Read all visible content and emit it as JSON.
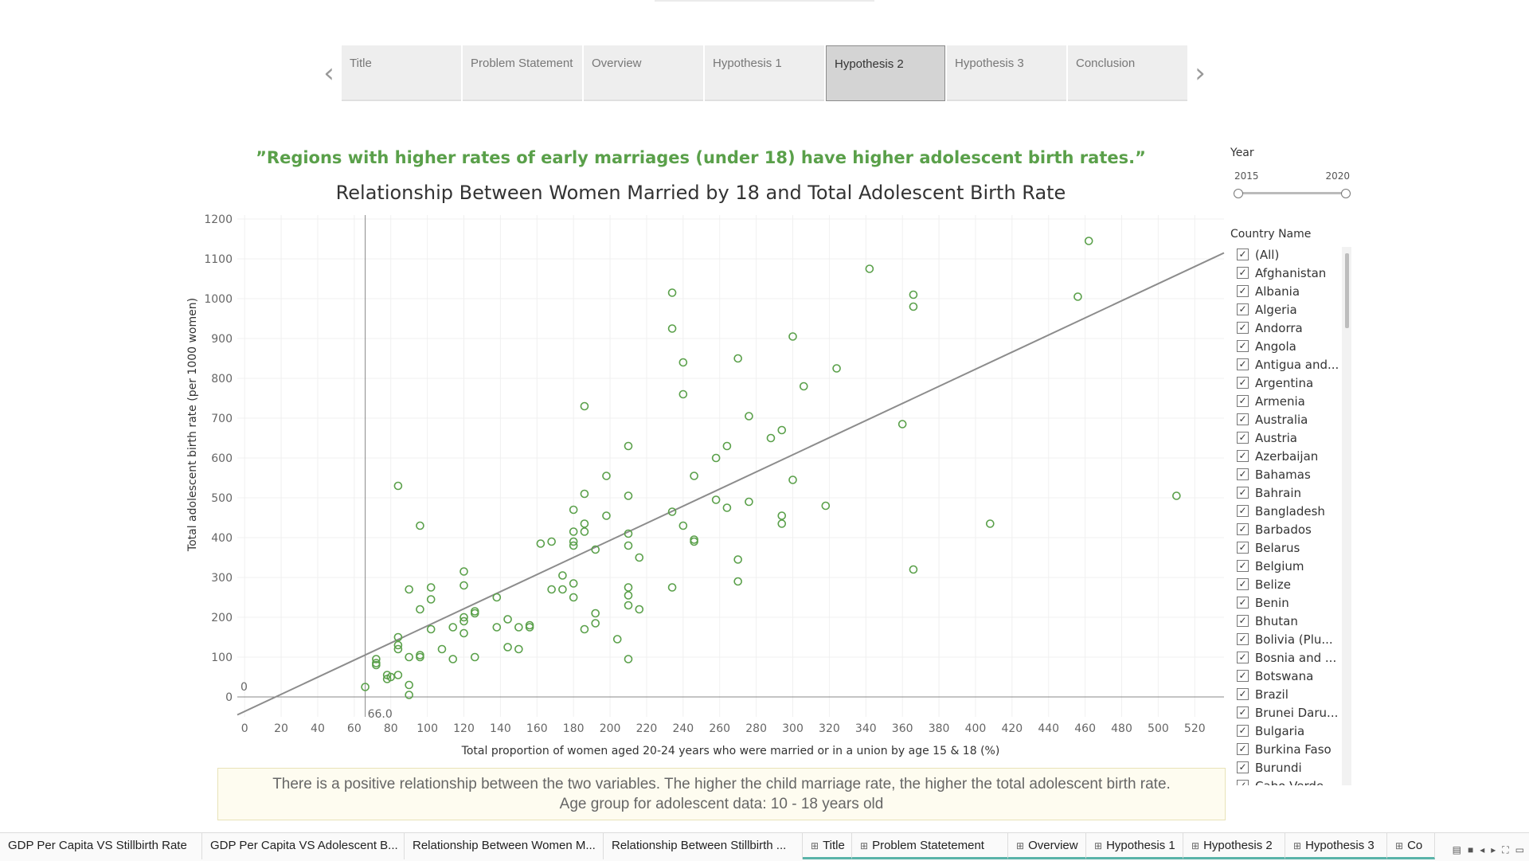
{
  "story": {
    "tabs": [
      {
        "label": "Title"
      },
      {
        "label": "Problem Statement"
      },
      {
        "label": "Overview"
      },
      {
        "label": "Hypothesis 1"
      },
      {
        "label": "Hypothesis 2",
        "active": true
      },
      {
        "label": "Hypothesis 3"
      },
      {
        "label": "Conclusion"
      }
    ]
  },
  "hypothesis_quote": "”Regions with higher rates of early marriages (under 18) have higher adolescent birth rates.”",
  "chart_data": {
    "type": "scatter",
    "title": "Relationship Between Women Married by 18 and Total Adolescent Birth Rate",
    "xlabel": "Total proportion of women aged 20-24 years who were married or in a union by age 15 & 18 (%)",
    "ylabel": "Total adolescent birth rate (per 1000 women)",
    "xlim": [
      -4,
      536
    ],
    "ylim": [
      -50,
      1210
    ],
    "xticks": [
      0,
      20,
      40,
      60,
      80,
      100,
      120,
      140,
      160,
      180,
      200,
      220,
      240,
      260,
      280,
      300,
      320,
      340,
      360,
      380,
      400,
      420,
      440,
      460,
      480,
      500,
      520
    ],
    "yticks": [
      0,
      100,
      200,
      300,
      400,
      500,
      600,
      700,
      800,
      900,
      1000,
      1100,
      1200
    ],
    "grid": true,
    "reference_line": {
      "x": 66.0,
      "label": "66.0"
    },
    "reference_zero_label": "0",
    "trend_line": {
      "x1": -4,
      "y1": -45,
      "x2": 536,
      "y2": 1115
    },
    "color": "#5aa04a",
    "points": [
      [
        66,
        25
      ],
      [
        72,
        85
      ],
      [
        72,
        95
      ],
      [
        72,
        80
      ],
      [
        78,
        45
      ],
      [
        78,
        55
      ],
      [
        80,
        50
      ],
      [
        84,
        150
      ],
      [
        84,
        130
      ],
      [
        84,
        120
      ],
      [
        84,
        55
      ],
      [
        90,
        5
      ],
      [
        90,
        30
      ],
      [
        90,
        100
      ],
      [
        90,
        270
      ],
      [
        96,
        100
      ],
      [
        96,
        105
      ],
      [
        96,
        220
      ],
      [
        84,
        530
      ],
      [
        96,
        430
      ],
      [
        102,
        275
      ],
      [
        102,
        245
      ],
      [
        102,
        170
      ],
      [
        108,
        120
      ],
      [
        114,
        175
      ],
      [
        114,
        95
      ],
      [
        120,
        200
      ],
      [
        120,
        190
      ],
      [
        120,
        160
      ],
      [
        120,
        280
      ],
      [
        120,
        315
      ],
      [
        126,
        210
      ],
      [
        126,
        215
      ],
      [
        126,
        100
      ],
      [
        138,
        250
      ],
      [
        138,
        175
      ],
      [
        144,
        195
      ],
      [
        144,
        125
      ],
      [
        150,
        175
      ],
      [
        150,
        120
      ],
      [
        156,
        180
      ],
      [
        156,
        175
      ],
      [
        162,
        385
      ],
      [
        168,
        390
      ],
      [
        168,
        270
      ],
      [
        174,
        270
      ],
      [
        174,
        305
      ],
      [
        180,
        470
      ],
      [
        180,
        415
      ],
      [
        180,
        390
      ],
      [
        180,
        380
      ],
      [
        180,
        285
      ],
      [
        180,
        250
      ],
      [
        186,
        730
      ],
      [
        186,
        510
      ],
      [
        186,
        435
      ],
      [
        186,
        415
      ],
      [
        186,
        170
      ],
      [
        192,
        370
      ],
      [
        192,
        210
      ],
      [
        192,
        185
      ],
      [
        198,
        555
      ],
      [
        198,
        455
      ],
      [
        204,
        145
      ],
      [
        210,
        630
      ],
      [
        210,
        505
      ],
      [
        210,
        410
      ],
      [
        210,
        380
      ],
      [
        210,
        275
      ],
      [
        210,
        255
      ],
      [
        210,
        230
      ],
      [
        210,
        95
      ],
      [
        216,
        350
      ],
      [
        216,
        220
      ],
      [
        234,
        1015
      ],
      [
        234,
        925
      ],
      [
        234,
        465
      ],
      [
        234,
        275
      ],
      [
        240,
        840
      ],
      [
        240,
        760
      ],
      [
        240,
        430
      ],
      [
        246,
        395
      ],
      [
        246,
        390
      ],
      [
        246,
        555
      ],
      [
        258,
        600
      ],
      [
        258,
        495
      ],
      [
        264,
        630
      ],
      [
        264,
        475
      ],
      [
        270,
        850
      ],
      [
        270,
        345
      ],
      [
        270,
        290
      ],
      [
        276,
        705
      ],
      [
        276,
        490
      ],
      [
        288,
        650
      ],
      [
        294,
        670
      ],
      [
        294,
        455
      ],
      [
        294,
        435
      ],
      [
        300,
        905
      ],
      [
        300,
        545
      ],
      [
        306,
        780
      ],
      [
        318,
        480
      ],
      [
        324,
        825
      ],
      [
        342,
        1075
      ],
      [
        360,
        685
      ],
      [
        366,
        1010
      ],
      [
        366,
        980
      ],
      [
        366,
        320
      ],
      [
        408,
        435
      ],
      [
        456,
        1005
      ],
      [
        462,
        1145
      ],
      [
        510,
        505
      ]
    ]
  },
  "filters": {
    "year": {
      "label": "Year",
      "min": "2015",
      "max": "2020"
    },
    "country": {
      "label": "Country Name",
      "items": [
        "(All)",
        "Afghanistan",
        "Albania",
        "Algeria",
        "Andorra",
        "Angola",
        "Antigua and...",
        "Argentina",
        "Armenia",
        "Australia",
        "Austria",
        "Azerbaijan",
        "Bahamas",
        "Bahrain",
        "Bangladesh",
        "Barbados",
        "Belarus",
        "Belgium",
        "Belize",
        "Benin",
        "Bhutan",
        "Bolivia (Plu...",
        "Bosnia and ...",
        "Botswana",
        "Brazil",
        "Brunei Daru...",
        "Bulgaria",
        "Burkina Faso",
        "Burundi",
        "Cabo Verde"
      ],
      "check_glyph": "✓"
    }
  },
  "caption": {
    "line1": "There is a positive relationship between the two variables. The higher the child marriage rate, the higher the total adolescent birth rate.",
    "line2": "Age group for adolescent data: 10 - 18 years old"
  },
  "sheet_tabs": [
    {
      "label": "GDP Per Capita VS Stillbirth Rate",
      "story": false
    },
    {
      "label": "GDP Per Capita VS Adolescent B...",
      "story": false
    },
    {
      "label": "Relationship Between Women M...",
      "story": false
    },
    {
      "label": "Relationship Between Stillbirth ...",
      "story": false
    },
    {
      "label": "Title",
      "story": true
    },
    {
      "label": "Problem Statetement",
      "story": true
    },
    {
      "label": "Overview",
      "story": true
    },
    {
      "label": "Hypothesis 1",
      "story": true
    },
    {
      "label": "Hypothesis 2",
      "story": true
    },
    {
      "label": "Hypothesis 3",
      "story": true
    },
    {
      "label": "Co",
      "story": true
    }
  ],
  "icons": {
    "prev": "‹",
    "next": "›",
    "story_icon": "⊞"
  }
}
